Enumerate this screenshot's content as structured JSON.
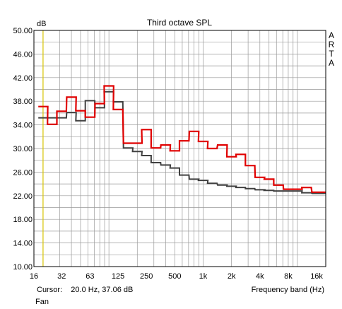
{
  "colors": {
    "background": "#ffffff",
    "plot_background": "#ffffff",
    "grid": "#9a9a9a",
    "axis": "#000000",
    "cursor_line": "#d8c400",
    "series_red": "#e00000",
    "series_gray": "#404040"
  },
  "chart_data": {
    "type": "line",
    "step": true,
    "title": "Third octave SPL",
    "ylabel": "dB",
    "xlabel": "Frequency band (Hz)",
    "watermark": [
      "A",
      "R",
      "T",
      "A"
    ],
    "cursor": "Cursor:    20.0 Hz, 37.06 dB",
    "footer": "Fan",
    "xscale": "log",
    "xlim": [
      16,
      20000
    ],
    "ylim": [
      10,
      50
    ],
    "grid": true,
    "x_tick_labels": [
      {
        "value": 16,
        "label": "16"
      },
      {
        "value": 31.5,
        "label": "32"
      },
      {
        "value": 63,
        "label": "63"
      },
      {
        "value": 125,
        "label": "125"
      },
      {
        "value": 250,
        "label": "250"
      },
      {
        "value": 500,
        "label": "500"
      },
      {
        "value": 1000,
        "label": "1k"
      },
      {
        "value": 2000,
        "label": "2k"
      },
      {
        "value": 4000,
        "label": "4k"
      },
      {
        "value": 8000,
        "label": "8k"
      },
      {
        "value": 16000,
        "label": "16k"
      }
    ],
    "y_ticks": [
      10,
      14,
      18,
      22,
      26,
      30,
      34,
      38,
      42,
      46,
      50
    ],
    "y_tick_labels": [
      "10.00",
      "14.00",
      "18.00",
      "22.00",
      "26.00",
      "30.00",
      "34.00",
      "38.00",
      "42.00",
      "46.00",
      "50.00"
    ],
    "bands": [
      20,
      25,
      31.5,
      40,
      50,
      63,
      80,
      100,
      125,
      160,
      200,
      250,
      315,
      400,
      500,
      630,
      800,
      1000,
      1250,
      1600,
      2000,
      2500,
      3150,
      4000,
      5000,
      6300,
      8000,
      10000,
      12500,
      16000,
      20000
    ],
    "series": [
      {
        "color": "#e00000",
        "values": [
          37.1,
          34.1,
          36.3,
          38.7,
          36.4,
          35.3,
          37.6,
          40.6,
          36.6,
          30.9,
          30.9,
          33.2,
          30.1,
          30.6,
          29.6,
          31.3,
          32.9,
          31.2,
          30.0,
          30.6,
          28.6,
          29.0,
          27.1,
          25.1,
          24.8,
          23.8,
          23.1,
          23.1,
          23.4,
          22.6,
          22.6
        ]
      },
      {
        "color": "#404040",
        "values": [
          35.2,
          35.2,
          35.2,
          36.1,
          34.7,
          38.1,
          36.9,
          39.6,
          37.9,
          30.1,
          29.5,
          28.8,
          27.6,
          27.2,
          26.7,
          25.5,
          24.8,
          24.6,
          24.1,
          23.8,
          23.6,
          23.4,
          23.2,
          23.0,
          22.9,
          22.8,
          22.8,
          22.8,
          22.5,
          22.4,
          22.4
        ]
      }
    ]
  }
}
